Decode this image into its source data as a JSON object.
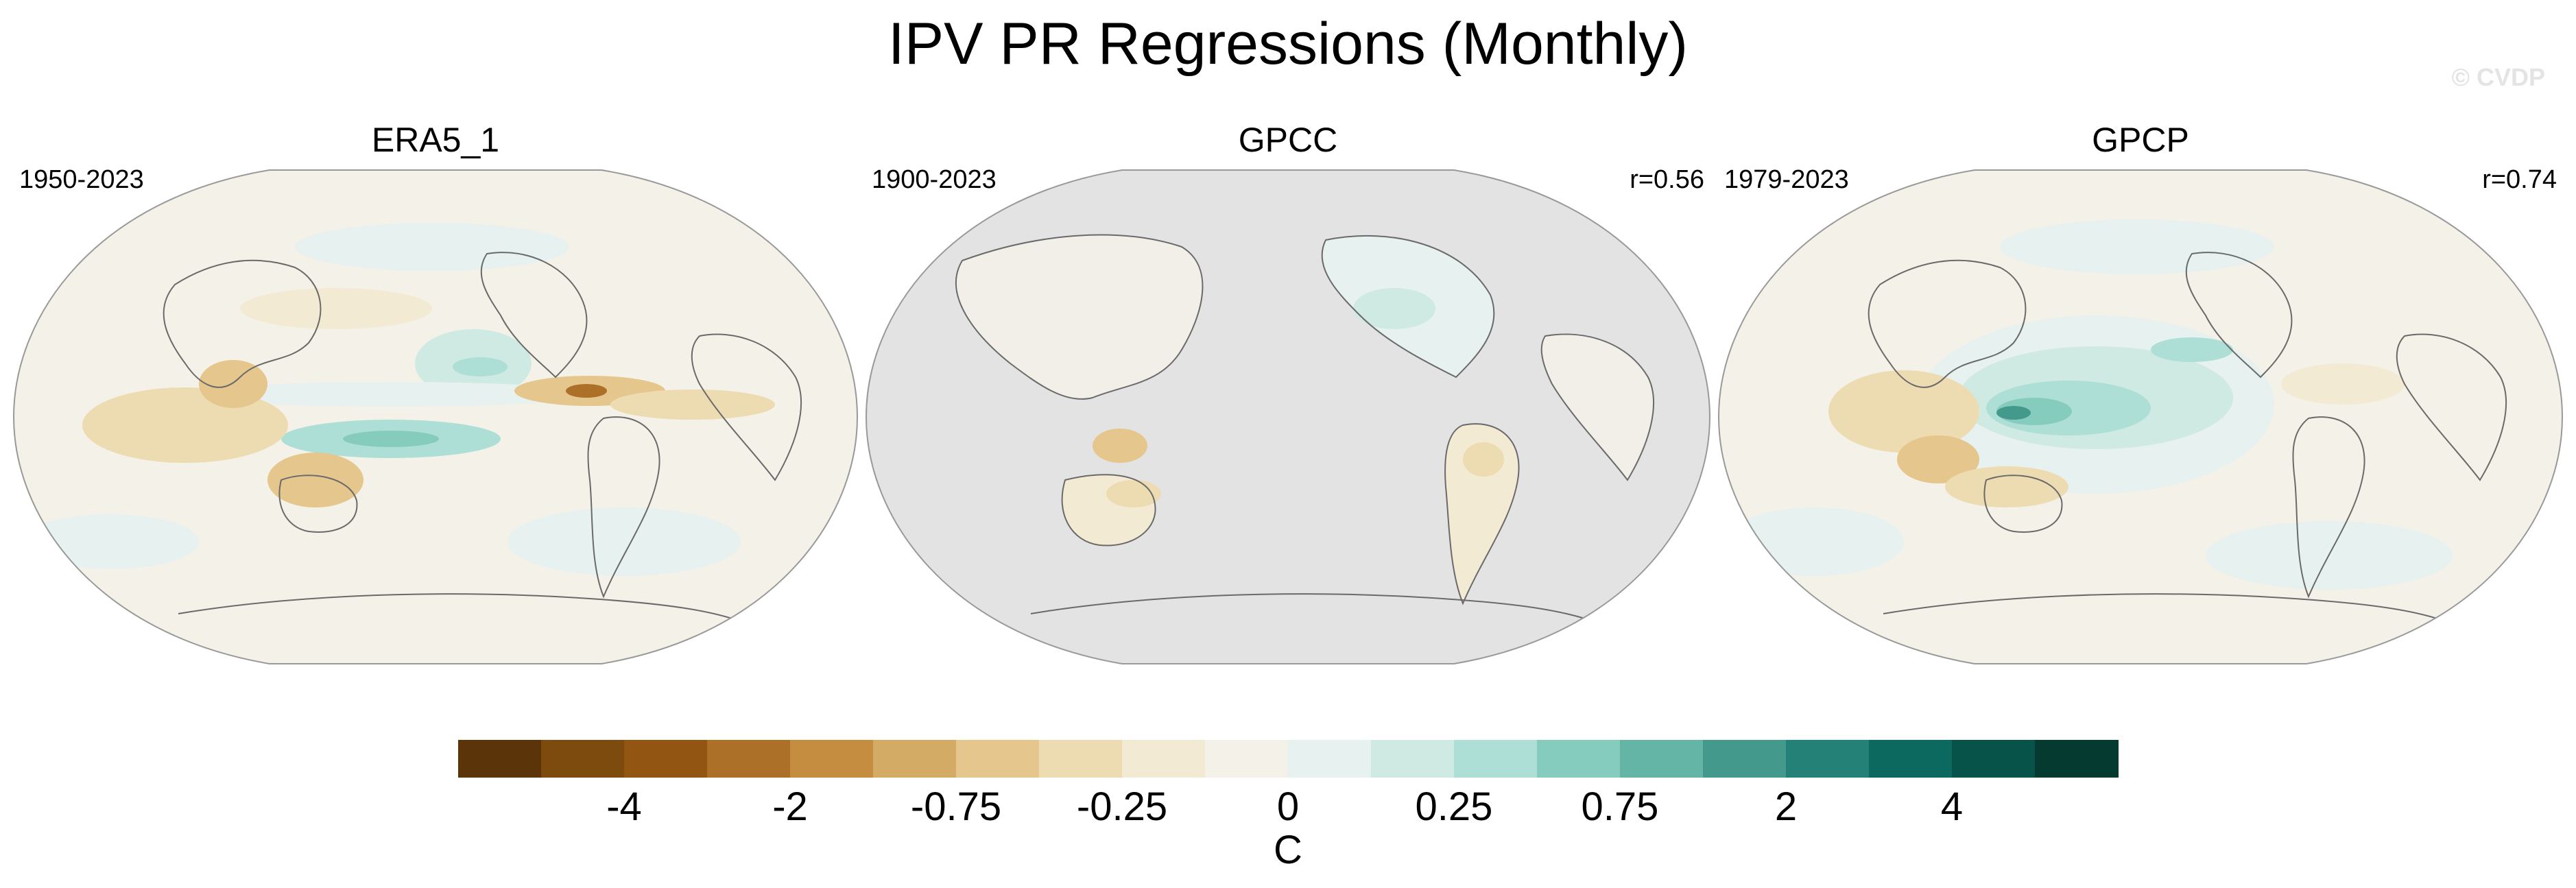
{
  "title": "IPV PR Regressions (Monthly)",
  "watermark": "© CVDP",
  "panels": [
    {
      "name": "ERA5_1",
      "years": "1950-2023",
      "corr": ""
    },
    {
      "name": "GPCC",
      "years": "1900-2023",
      "corr": "r=0.56"
    },
    {
      "name": "GPCP",
      "years": "1979-2023",
      "corr": "r=0.74"
    }
  ],
  "colorbar": {
    "colors": [
      "#5b3509",
      "#7e4b0f",
      "#925612",
      "#ad7028",
      "#c58d40",
      "#d4ab64",
      "#e5c68c",
      "#eddbb2",
      "#f3ead3",
      "#f4f1e8",
      "#e7f1ef",
      "#cfe9e3",
      "#aedfd6",
      "#86ccbe",
      "#64b5a6",
      "#43998b",
      "#238178",
      "#0b6960",
      "#075349",
      "#043a30"
    ],
    "labels": [
      "-4",
      "-2",
      "-0.75",
      "-0.25",
      "0",
      "0.25",
      "0.75",
      "2",
      "4"
    ],
    "units": "C"
  },
  "colors": {
    "ocean_background": "#f4f1e8",
    "masked_gray": "#e3e3e3",
    "coast": "#6a6a6a"
  }
}
